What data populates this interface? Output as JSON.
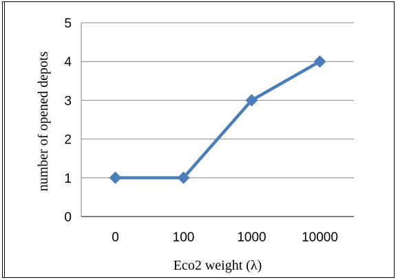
{
  "chart_data": {
    "type": "line",
    "title": "",
    "xlabel": "Eco2 weight (λ)",
    "ylabel": "number of opened depots",
    "categories": [
      "0",
      "100",
      "1000",
      "10000"
    ],
    "series": [
      {
        "values": [
          1,
          1,
          3,
          4
        ]
      }
    ],
    "ylim": [
      0,
      5
    ],
    "yticks": [
      "0",
      "1",
      "2",
      "3",
      "4",
      "5"
    ],
    "grid": "horizontal",
    "legend": "none",
    "line_color": "#4a7ebb"
  }
}
